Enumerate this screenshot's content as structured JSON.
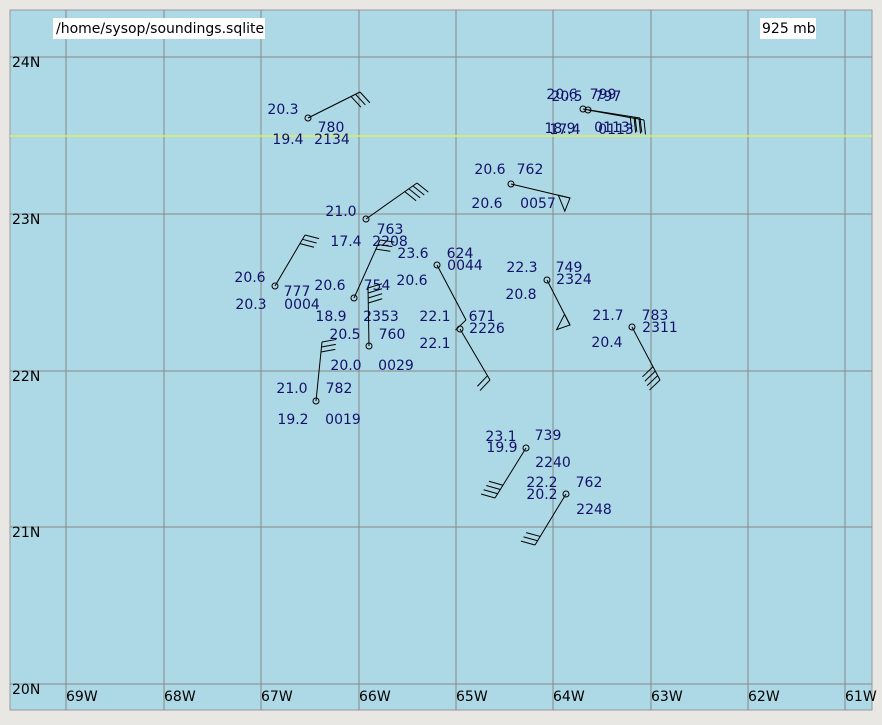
{
  "header": {
    "file_path": "/home/sysop/soundings.sqlite",
    "level": "925 mb"
  },
  "axes": {
    "latitude_labels": [
      "24N",
      "23N",
      "22N",
      "21N",
      "20N"
    ],
    "longitude_labels": [
      "69W",
      "68W",
      "67W",
      "66W",
      "65W",
      "64W",
      "63W",
      "62W",
      "61W"
    ]
  },
  "stations": [
    {
      "temperature": "20.3",
      "height": "780",
      "dewpoint": "19.4",
      "code": "2134"
    },
    {
      "temperature": "20.6",
      "height": "799",
      "dewpoint": "18.9",
      "code": "0113"
    },
    {
      "temperature": "20.5",
      "height": "797",
      "dewpoint": "17.4",
      "code": "0113"
    },
    {
      "temperature": "20.6",
      "height": "762",
      "dewpoint": "20.6",
      "code": "0057"
    },
    {
      "temperature": "21.0",
      "height": "763",
      "dewpoint": "17.4",
      "code": "2208"
    },
    {
      "temperature": "20.6",
      "height": "777",
      "dewpoint": "20.3",
      "code": "0004"
    },
    {
      "temperature": "20.6",
      "height": "754",
      "dewpoint": "18.9",
      "code": "2353"
    },
    {
      "temperature": "23.6",
      "height": "624",
      "dewpoint": "20.6",
      "code": "0044"
    },
    {
      "temperature": "20.5",
      "height": "760",
      "dewpoint": "20.0",
      "code": "0029"
    },
    {
      "temperature": "22.1",
      "height": "671",
      "dewpoint": "22.1",
      "code": "2226"
    },
    {
      "temperature": "22.3",
      "height": "749",
      "dewpoint": "20.8",
      "code": "2324"
    },
    {
      "temperature": "21.7",
      "height": "783",
      "dewpoint": "20.4",
      "code": "2311"
    },
    {
      "temperature": "21.0",
      "height": "782",
      "dewpoint": "19.2",
      "code": "0019"
    },
    {
      "temperature": "23.1",
      "height": "739",
      "dewpoint": "19.9",
      "code": "2240"
    },
    {
      "temperature": "22.2",
      "height": "762",
      "dewpoint": "20.2",
      "code": "2248"
    }
  ]
}
